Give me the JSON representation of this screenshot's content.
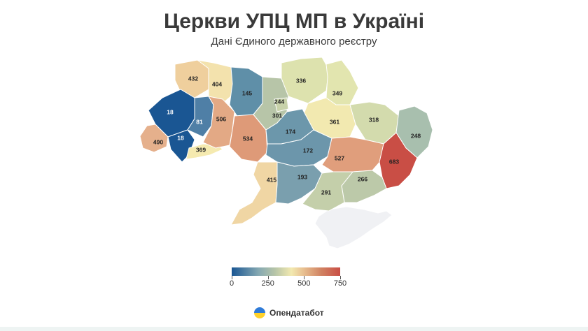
{
  "title": "Церкви УПЦ МП в Україні",
  "subtitle": "Дані Єдиного державного реєстру",
  "map_data": {
    "colors": {
      "c18": "#1a5693",
      "c81": "#4f7fa6",
      "c145": "#5f8fa8",
      "c172": "#6c96ab",
      "c174": "#6c97ab",
      "c193": "#7a9fae",
      "c244": "#b7c5a8",
      "c248": "#a8bfae",
      "c266": "#bcc9a9",
      "c291": "#c4cfaa",
      "c301": "#c8d2aa",
      "c318": "#d3dbad",
      "c336": "#dde2ae",
      "c349": "#e2e5af",
      "c361": "#f2e9b0",
      "c369": "#f5eab0",
      "c404": "#f3e2ad",
      "c415": "#f0d6a4",
      "c432": "#efcf9d",
      "c490": "#e5b08c",
      "c506": "#e3a985",
      "c527": "#e09e7c",
      "c534": "#de9a78",
      "c683": "#c94e45",
      "crimea": "#f0f1f4"
    },
    "regions": [
      {
        "value": "432"
      },
      {
        "value": "404"
      },
      {
        "value": "145"
      },
      {
        "value": "244"
      },
      {
        "value": "336"
      },
      {
        "value": "349"
      },
      {
        "value": "18"
      },
      {
        "value": "81"
      },
      {
        "value": "506"
      },
      {
        "value": "301"
      },
      {
        "value": "361"
      },
      {
        "value": "318"
      },
      {
        "value": "248"
      },
      {
        "value": "174"
      },
      {
        "value": "534"
      },
      {
        "value": "490"
      },
      {
        "value": "18"
      },
      {
        "value": "369"
      },
      {
        "value": "172"
      },
      {
        "value": "527"
      },
      {
        "value": "683"
      },
      {
        "value": "415"
      },
      {
        "value": "193"
      },
      {
        "value": "266"
      },
      {
        "value": "291"
      }
    ]
  },
  "legend": {
    "colors": [
      "#1a5693",
      "#86a9b2",
      "#b7c5a8",
      "#f2e9b0",
      "#e8c091",
      "#d18463",
      "#c94e45"
    ],
    "ticks": [
      "0",
      "250",
      "500",
      "750"
    ],
    "range": [
      0,
      750
    ]
  },
  "brand": {
    "name": "Опендатабот"
  }
}
